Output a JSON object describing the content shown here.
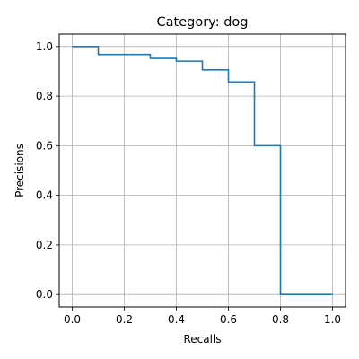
{
  "chart_data": {
    "type": "line",
    "drawstyle": "steps-post",
    "title": "Category: dog",
    "xlabel": "Recalls",
    "ylabel": "Precisions",
    "xlim": [
      -0.05,
      1.05
    ],
    "ylim": [
      -0.05,
      1.05
    ],
    "grid": true,
    "xticks": [
      0.0,
      0.2,
      0.4,
      0.6,
      0.8,
      1.0
    ],
    "yticks": [
      0.0,
      0.2,
      0.4,
      0.6,
      0.8,
      1.0
    ],
    "xtick_labels": [
      "0.0",
      "0.2",
      "0.4",
      "0.6",
      "0.8",
      "1.0"
    ],
    "ytick_labels": [
      "0.0",
      "0.2",
      "0.4",
      "0.6",
      "0.8",
      "1.0"
    ],
    "series": [
      {
        "color": "#1f77b4",
        "x": [
          0.0,
          0.1,
          0.2,
          0.3,
          0.4,
          0.5,
          0.6,
          0.7,
          0.8,
          1.0
        ],
        "y": [
          1.0,
          0.968,
          0.968,
          0.952,
          0.941,
          0.906,
          0.857,
          0.6,
          0.0,
          0.0
        ]
      }
    ]
  }
}
